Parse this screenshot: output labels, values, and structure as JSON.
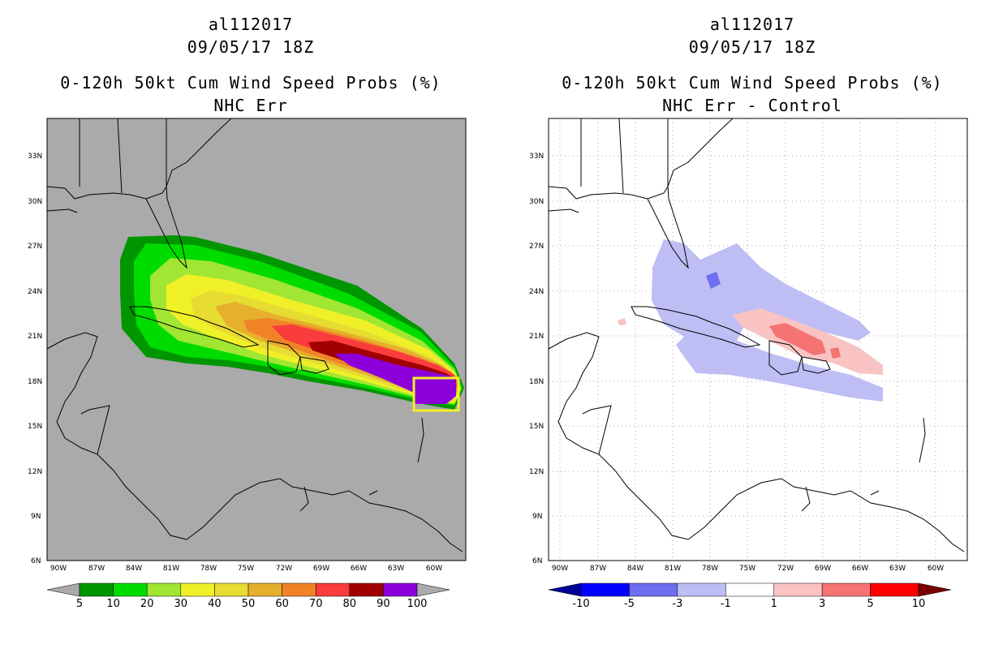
{
  "panels": [
    {
      "id": "left",
      "storm_id": "al112017",
      "datetime": "09/05/17 18Z",
      "product": "0-120h 50kt Cum Wind Speed Probs (%)",
      "subtitle": "NHC Err",
      "background": "#aaaaaa",
      "colorbar": {
        "labels": [
          "5",
          "10",
          "20",
          "30",
          "40",
          "50",
          "60",
          "70",
          "80",
          "90",
          "100"
        ],
        "colors": [
          "#009600",
          "#00dc00",
          "#a0e632",
          "#f0f028",
          "#e6dc32",
          "#e6af2d",
          "#f08228",
          "#fa3c3c",
          "#a00000",
          "#8c00dc"
        ],
        "end_color": "#aaaaaa"
      }
    },
    {
      "id": "right",
      "storm_id": "al112017",
      "datetime": "09/05/17 18Z",
      "product": "0-120h 50kt Cum Wind Speed Probs (%)",
      "subtitle": "NHC Err - Control",
      "background": "#ffffff",
      "colorbar": {
        "labels": [
          "-10",
          "-5",
          "-3",
          "-1",
          "1",
          "3",
          "5",
          "10"
        ],
        "colors": [
          "#0000ff",
          "#6e6ef0",
          "#bebef5",
          "#ffffff",
          "#fac3c3",
          "#f57373",
          "#ff0000"
        ],
        "end_low": "#000096",
        "end_high": "#780000"
      }
    }
  ],
  "axes": {
    "lat_labels": [
      "33N",
      "30N",
      "27N",
      "24N",
      "21N",
      "18N",
      "15N",
      "12N",
      "9N",
      "6N"
    ],
    "lon_labels": [
      "90W",
      "87W",
      "84W",
      "81W",
      "78W",
      "75W",
      "72W",
      "69W",
      "66W",
      "63W",
      "60W"
    ]
  }
}
